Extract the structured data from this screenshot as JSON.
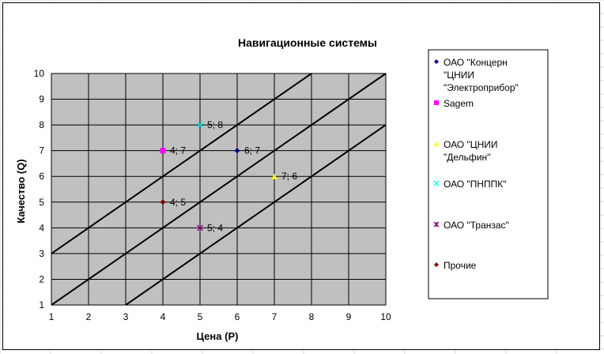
{
  "chart_data": {
    "type": "scatter",
    "title": "Навигационные системы",
    "xlabel": "Цена (P)",
    "ylabel": "Качество (Q)",
    "xlim": [
      1,
      10
    ],
    "ylim": [
      1,
      10
    ],
    "x_ticks": [
      "1",
      "2",
      "3",
      "4",
      "5",
      "6",
      "7",
      "8",
      "9",
      "10"
    ],
    "y_ticks": [
      "1",
      "2",
      "3",
      "4",
      "5",
      "6",
      "7",
      "8",
      "9",
      "10"
    ],
    "grid": true,
    "plot_background": "#c0c0c0",
    "legend_position": "right",
    "series": [
      {
        "name": "ОАО \"Концерн \"ЦНИИ \"Электроприбор\"",
        "legend_lines": [
          "ОАО \"Концерн",
          "\"ЦНИИ",
          "\"Электроприбор\""
        ],
        "marker": "diamond",
        "color": "#000080",
        "points": [
          {
            "x": 6,
            "y": 7,
            "label": "6; 7"
          }
        ]
      },
      {
        "name": "Sagem",
        "legend_lines": [
          "Sagem"
        ],
        "marker": "square",
        "color": "#ff00ff",
        "points": [
          {
            "x": 4,
            "y": 7,
            "label": "4; 7"
          }
        ]
      },
      {
        "name": "ОАО \"ЦНИИ \"Дельфин\"",
        "legend_lines": [
          "ОАО \"ЦНИИ",
          "\"Дельфин\""
        ],
        "marker": "triangle",
        "color": "#ffff00",
        "points": [
          {
            "x": 7,
            "y": 6,
            "label": "7; 6"
          }
        ]
      },
      {
        "name": "ОАО \"ПНППК\"",
        "legend_lines": [
          "ОАО \"ПНППК\""
        ],
        "marker": "x",
        "color": "#00ffff",
        "points": [
          {
            "x": 5,
            "y": 8,
            "label": "5; 8"
          }
        ]
      },
      {
        "name": "ОАО \"Транзас\"",
        "legend_lines": [
          "ОАО \"Транзас\""
        ],
        "marker": "star",
        "color": "#800080",
        "points": [
          {
            "x": 5,
            "y": 4,
            "label": "5; 4"
          }
        ]
      },
      {
        "name": "Прочие",
        "legend_lines": [
          "Прочие"
        ],
        "marker": "diamond",
        "color": "#800000",
        "points": [
          {
            "x": 4,
            "y": 5,
            "label": "4; 5"
          }
        ]
      }
    ],
    "reference_lines": [
      {
        "from": [
          1,
          3
        ],
        "to": [
          8,
          10
        ]
      },
      {
        "from": [
          1,
          1
        ],
        "to": [
          10,
          10
        ]
      },
      {
        "from": [
          3,
          1
        ],
        "to": [
          10,
          8
        ]
      }
    ]
  }
}
